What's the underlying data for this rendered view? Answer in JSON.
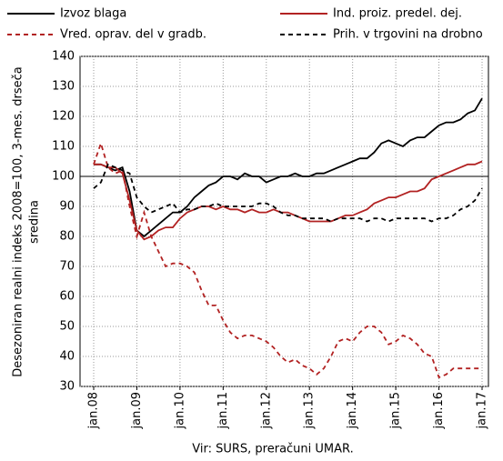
{
  "chart_data": {
    "type": "line",
    "y_label": [
      "Desezoniran realni indeks 2008=100, 3-mes. drseča",
      "sredina"
    ],
    "source": "Vir: SURS, preračuni UMAR.",
    "categories": [
      "jan.08",
      null,
      null,
      null,
      null,
      null,
      "jan.09",
      null,
      null,
      null,
      null,
      null,
      "jan.10",
      null,
      null,
      null,
      null,
      null,
      "jan.11",
      null,
      null,
      null,
      null,
      null,
      "jan.12",
      null,
      null,
      null,
      null,
      null,
      "jan.13",
      null,
      null,
      null,
      null,
      null,
      "jan.14",
      null,
      null,
      null,
      null,
      null,
      "jan.15",
      null,
      null,
      null,
      null,
      null,
      "jan.16",
      null,
      null,
      null,
      null,
      null,
      "jan.17"
    ],
    "series": [
      {
        "name": "Izvoz blaga",
        "color": "#000000",
        "style": "solid",
        "values": [
          104,
          104,
          103,
          102,
          103,
          95,
          82,
          80,
          82,
          84,
          86,
          88,
          88,
          90,
          93,
          95,
          97,
          98,
          100,
          100,
          99,
          101,
          100,
          100,
          98,
          99,
          100,
          100,
          101,
          100,
          100,
          101,
          101,
          102,
          103,
          104,
          105,
          106,
          106,
          108,
          111,
          112,
          111,
          110,
          112,
          113,
          113,
          115,
          117,
          118,
          118,
          119,
          121,
          122,
          126
        ]
      },
      {
        "name": "Ind. proiz. predel. dej.",
        "color": "#b22222",
        "style": "solid",
        "values": [
          104,
          104,
          103,
          103,
          101,
          92,
          82,
          79,
          80,
          82,
          83,
          83,
          86,
          88,
          89,
          90,
          90,
          89,
          90,
          89,
          89,
          88,
          89,
          88,
          88,
          89,
          88,
          88,
          87,
          86,
          85,
          85,
          85,
          85,
          86,
          87,
          87,
          88,
          89,
          91,
          92,
          93,
          93,
          94,
          95,
          95,
          96,
          99,
          100,
          101,
          102,
          103,
          104,
          104,
          105
        ]
      },
      {
        "name": "Vred. oprav. del v gradb.",
        "color": "#b22222",
        "style": "dashed",
        "values": [
          104,
          111,
          103,
          101,
          102,
          90,
          80,
          88,
          80,
          75,
          70,
          71,
          71,
          70,
          68,
          62,
          57,
          57,
          52,
          48,
          46,
          47,
          47,
          46,
          45,
          43,
          40,
          38,
          39,
          37,
          36,
          34,
          36,
          40,
          45,
          46,
          45,
          48,
          50,
          50,
          48,
          44,
          45,
          47,
          46,
          44,
          41,
          40,
          33,
          34,
          36,
          36,
          36,
          36,
          36
        ]
      },
      {
        "name": "Prih. v trgovini na drobno",
        "color": "#000000",
        "style": "dashed",
        "values": [
          96,
          98,
          104,
          103,
          102,
          101,
          93,
          90,
          88,
          89,
          90,
          91,
          88,
          89,
          89,
          90,
          90,
          91,
          90,
          90,
          90,
          90,
          90,
          91,
          91,
          90,
          88,
          87,
          87,
          86,
          86,
          86,
          86,
          85,
          86,
          86,
          86,
          86,
          85,
          86,
          86,
          85,
          86,
          86,
          86,
          86,
          86,
          85,
          86,
          86,
          87,
          89,
          90,
          92,
          96
        ]
      }
    ],
    "ylim": [
      30,
      140
    ],
    "yticks": [
      30,
      40,
      50,
      60,
      70,
      80,
      90,
      100,
      110,
      120,
      130,
      140
    ],
    "reference_line": 100,
    "grid": true
  }
}
